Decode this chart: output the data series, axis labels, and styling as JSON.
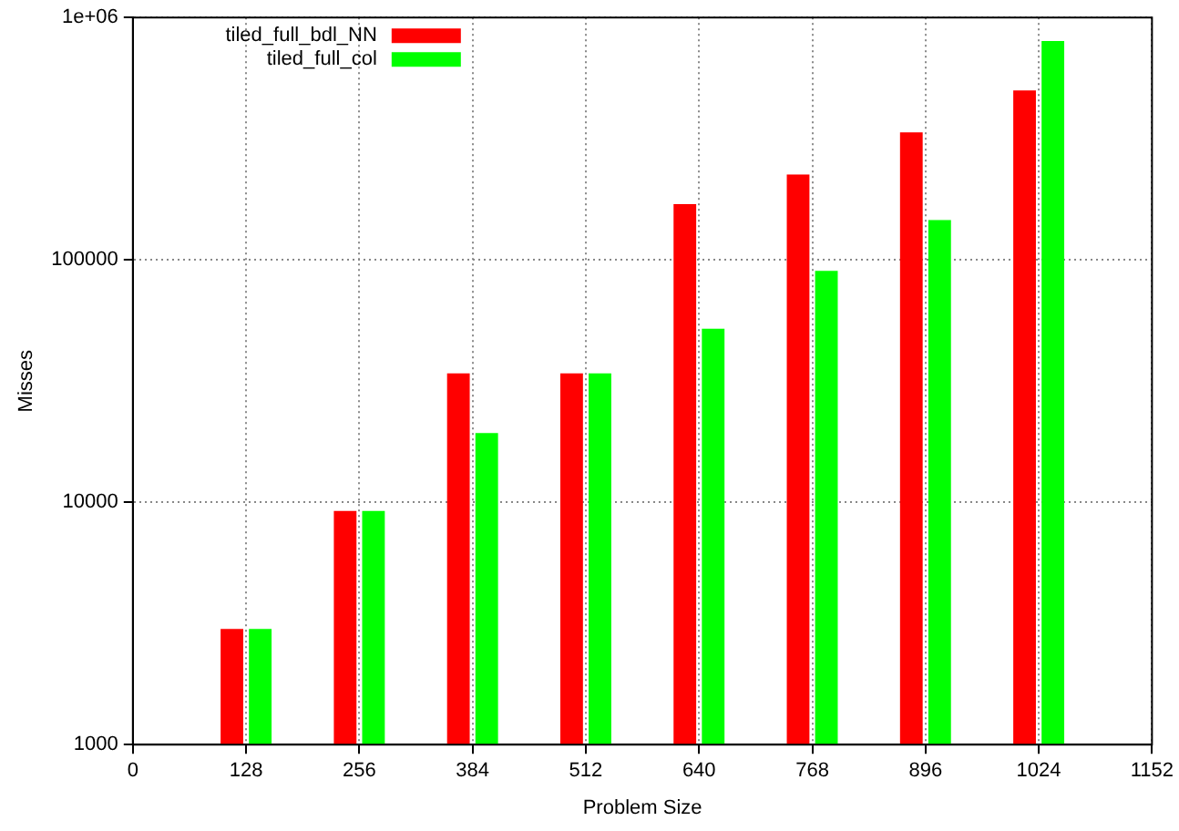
{
  "chart_data": {
    "type": "bar",
    "xlabel": "Problem Size",
    "ylabel": "Misses",
    "x": [
      128,
      256,
      384,
      512,
      640,
      768,
      896,
      1024
    ],
    "series": [
      {
        "name": "tiled_full_bdl_NN",
        "color": "#ff0000",
        "values": [
          3000,
          9200,
          34000,
          34000,
          170000,
          225000,
          336000,
          500000
        ]
      },
      {
        "name": "tiled_full_col",
        "color": "#00ff00",
        "values": [
          3000,
          9200,
          19300,
          34000,
          52000,
          90000,
          146000,
          800000
        ]
      }
    ],
    "xlim": [
      0,
      1152
    ],
    "xticks": [
      0,
      128,
      256,
      384,
      512,
      640,
      768,
      896,
      1024,
      1152
    ],
    "ylim": [
      1000,
      1000000
    ],
    "yticks": [
      1000,
      10000,
      100000,
      {
        "value": 1000000,
        "label": "1e+06"
      }
    ],
    "log": "y",
    "grid": true,
    "legend": "top left"
  }
}
